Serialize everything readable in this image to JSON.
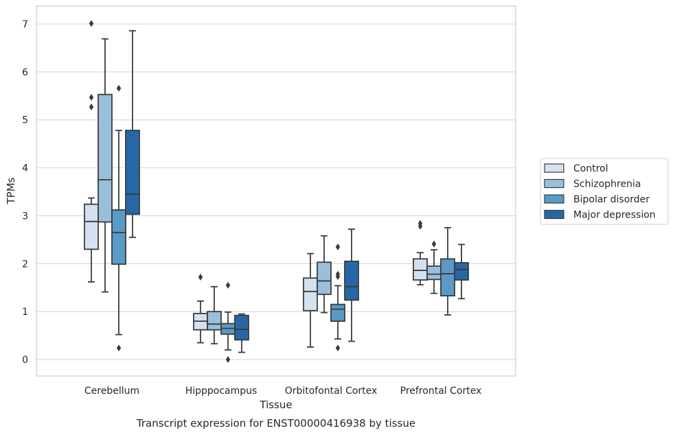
{
  "chart_data": {
    "type": "box",
    "title": "",
    "caption": "Transcript expression for ENST00000416938 by tissue",
    "xlabel": "Tissue",
    "ylabel": "TPMs",
    "ylim": [
      -0.33,
      7.35
    ],
    "yticks": [
      0,
      1,
      2,
      3,
      4,
      5,
      6,
      7
    ],
    "grid": "horizontal",
    "legend_position": "right",
    "categories": [
      "Cerebellum",
      "Hipppocampus",
      "Orbitofontal Cortex",
      "Prefrontal Cortex"
    ],
    "series": [
      {
        "name": "Control",
        "color": "#d4e1f0",
        "boxes": [
          {
            "whislo": 1.62,
            "q1": 2.3,
            "med": 2.88,
            "q3": 3.24,
            "whishi": 3.37,
            "fliers": [
              5.27,
              5.47,
              7.01
            ]
          },
          {
            "whislo": 0.35,
            "q1": 0.62,
            "med": 0.8,
            "q3": 0.96,
            "whishi": 1.22,
            "fliers": [
              1.72
            ]
          },
          {
            "whislo": 0.26,
            "q1": 1.02,
            "med": 1.42,
            "q3": 1.7,
            "whishi": 2.21,
            "fliers": []
          },
          {
            "whislo": 1.56,
            "q1": 1.66,
            "med": 1.86,
            "q3": 2.1,
            "whishi": 2.23,
            "fliers": [
              2.78,
              2.84
            ]
          }
        ]
      },
      {
        "name": "Schizophrenia",
        "color": "#99c0db",
        "boxes": [
          {
            "whislo": 1.41,
            "q1": 2.87,
            "med": 3.75,
            "q3": 5.53,
            "whishi": 6.69,
            "fliers": []
          },
          {
            "whislo": 0.33,
            "q1": 0.62,
            "med": 0.74,
            "q3": 1.0,
            "whishi": 1.52,
            "fliers": []
          },
          {
            "whislo": 0.98,
            "q1": 1.36,
            "med": 1.64,
            "q3": 2.03,
            "whishi": 2.58,
            "fliers": []
          },
          {
            "whislo": 1.38,
            "q1": 1.67,
            "med": 1.78,
            "q3": 1.95,
            "whishi": 2.29,
            "fliers": [
              2.41
            ]
          }
        ]
      },
      {
        "name": "Bipolar disorder",
        "color": "#5a9ac8",
        "boxes": [
          {
            "whislo": 0.52,
            "q1": 1.99,
            "med": 2.65,
            "q3": 3.12,
            "whishi": 4.78,
            "fliers": [
              0.24,
              5.66
            ]
          },
          {
            "whislo": 0.2,
            "q1": 0.53,
            "med": 0.65,
            "q3": 0.75,
            "whishi": 0.99,
            "fliers": [
              0.0,
              1.55
            ]
          },
          {
            "whislo": 0.43,
            "q1": 0.8,
            "med": 1.05,
            "q3": 1.15,
            "whishi": 1.54,
            "fliers": [
              0.24,
              1.73,
              1.78,
              2.35
            ]
          },
          {
            "whislo": 0.93,
            "q1": 1.33,
            "med": 1.79,
            "q3": 2.1,
            "whishi": 2.75,
            "fliers": []
          }
        ]
      },
      {
        "name": "Major depression",
        "color": "#2767a8",
        "boxes": [
          {
            "whislo": 2.55,
            "q1": 3.03,
            "med": 3.45,
            "q3": 4.78,
            "whishi": 6.86,
            "fliers": []
          },
          {
            "whislo": 0.15,
            "q1": 0.41,
            "med": 0.63,
            "q3": 0.92,
            "whishi": 0.95,
            "fliers": []
          },
          {
            "whislo": 0.38,
            "q1": 1.24,
            "med": 1.52,
            "q3": 2.05,
            "whishi": 2.72,
            "fliers": []
          },
          {
            "whislo": 1.27,
            "q1": 1.66,
            "med": 1.88,
            "q3": 2.02,
            "whishi": 2.4,
            "fliers": []
          }
        ]
      }
    ]
  }
}
